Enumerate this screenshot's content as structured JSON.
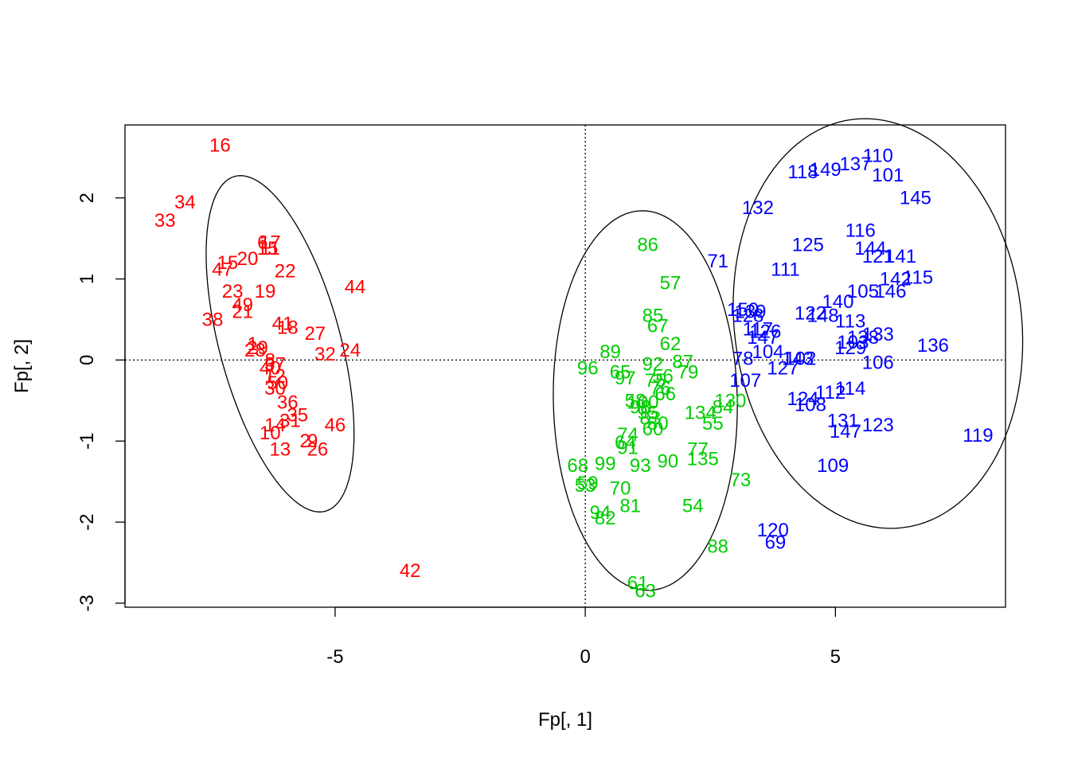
{
  "chart_data": {
    "type": "scatter",
    "title": "",
    "xlabel": "Fp[, 1]",
    "ylabel": "Fp[, 2]",
    "xlim": [
      -9.2,
      8.4
    ],
    "ylim": [
      -3.05,
      2.9
    ],
    "x_ticks": [
      -5,
      0,
      5
    ],
    "y_ticks": [
      -3,
      -2,
      -1,
      0,
      1,
      2
    ],
    "grid": false,
    "reference_lines": {
      "x": 0,
      "y": 0,
      "style": "dotted"
    },
    "colors": {
      "group1": "#ff0000",
      "group2": "#00cd00",
      "group3": "#0000ff",
      "ellipse": "#000000"
    },
    "ellipses": [
      {
        "group": "group1",
        "center": [
          -6.1,
          0.2
        ],
        "rx": 2.45,
        "ry": 1.12,
        "rotation_deg": 62
      },
      {
        "group": "group2",
        "center": [
          1.1,
          -0.6
        ],
        "rx": 3.1,
        "ry": 3.1,
        "rotation_deg": 0,
        "data_axes": [
          1.85,
          2.32
        ],
        "points": "computed"
      },
      {
        "group": "group3",
        "center": [
          5.9,
          0.6
        ],
        "data_axes": [
          3.0,
          2.8
        ],
        "rotation_deg": 0
      }
    ],
    "series": [
      {
        "name": "",
        "color_key": "group1",
        "points": [
          {
            "label": "16",
            "x": -7.3,
            "y": 2.65
          },
          {
            "label": "34",
            "x": -8.0,
            "y": 1.95
          },
          {
            "label": "33",
            "x": -8.4,
            "y": 1.72
          },
          {
            "label": "17",
            "x": -6.3,
            "y": 1.45
          },
          {
            "label": "6",
            "x": -6.45,
            "y": 1.45
          },
          {
            "label": "11",
            "x": -6.3,
            "y": 1.38
          },
          {
            "label": "15",
            "x": -6.35,
            "y": 1.38
          },
          {
            "label": "20",
            "x": -6.75,
            "y": 1.25
          },
          {
            "label": "15",
            "x": -7.15,
            "y": 1.2
          },
          {
            "label": "47",
            "x": -7.25,
            "y": 1.12
          },
          {
            "label": "22",
            "x": -6.0,
            "y": 1.1
          },
          {
            "label": "23",
            "x": -7.05,
            "y": 0.85
          },
          {
            "label": "19",
            "x": -6.4,
            "y": 0.85
          },
          {
            "label": "49",
            "x": -6.85,
            "y": 0.68
          },
          {
            "label": "21",
            "x": -6.85,
            "y": 0.6
          },
          {
            "label": "38",
            "x": -7.45,
            "y": 0.5
          },
          {
            "label": "44",
            "x": -4.6,
            "y": 0.9
          },
          {
            "label": "41",
            "x": -6.05,
            "y": 0.45
          },
          {
            "label": "18",
            "x": -5.95,
            "y": 0.4
          },
          {
            "label": "27",
            "x": -5.4,
            "y": 0.33
          },
          {
            "label": "1",
            "x": -6.65,
            "y": 0.2
          },
          {
            "label": "29",
            "x": -6.55,
            "y": 0.15
          },
          {
            "label": "28",
            "x": -6.6,
            "y": 0.12
          },
          {
            "label": "32",
            "x": -5.2,
            "y": 0.07
          },
          {
            "label": "24",
            "x": -4.7,
            "y": 0.12
          },
          {
            "label": "8",
            "x": -6.3,
            "y": 0.0
          },
          {
            "label": "37",
            "x": -6.2,
            "y": -0.05
          },
          {
            "label": "40",
            "x": -6.3,
            "y": -0.1
          },
          {
            "label": "12",
            "x": -6.2,
            "y": -0.2
          },
          {
            "label": "50",
            "x": -6.15,
            "y": -0.28
          },
          {
            "label": "30",
            "x": -6.2,
            "y": -0.35
          },
          {
            "label": "36",
            "x": -5.95,
            "y": -0.52
          },
          {
            "label": "35",
            "x": -5.75,
            "y": -0.68
          },
          {
            "label": "31",
            "x": -5.9,
            "y": -0.75
          },
          {
            "label": "14",
            "x": -6.2,
            "y": -0.8
          },
          {
            "label": "10",
            "x": -6.3,
            "y": -0.9
          },
          {
            "label": "46",
            "x": -5.0,
            "y": -0.8
          },
          {
            "label": "2",
            "x": -5.6,
            "y": -1.0
          },
          {
            "label": "9",
            "x": -5.45,
            "y": -1.0
          },
          {
            "label": "13",
            "x": -6.1,
            "y": -1.1
          },
          {
            "label": "26",
            "x": -5.35,
            "y": -1.1
          },
          {
            "label": "42",
            "x": -3.5,
            "y": -2.6
          }
        ]
      },
      {
        "name": "",
        "color_key": "group2",
        "points": [
          {
            "label": "86",
            "x": 1.25,
            "y": 1.42
          },
          {
            "label": "57",
            "x": 1.7,
            "y": 0.95
          },
          {
            "label": "85",
            "x": 1.35,
            "y": 0.55
          },
          {
            "label": "67",
            "x": 1.45,
            "y": 0.42
          },
          {
            "label": "62",
            "x": 1.7,
            "y": 0.2
          },
          {
            "label": "89",
            "x": 0.5,
            "y": 0.1
          },
          {
            "label": "96",
            "x": 0.05,
            "y": -0.1
          },
          {
            "label": "65",
            "x": 0.7,
            "y": -0.15
          },
          {
            "label": "97",
            "x": 0.8,
            "y": -0.22
          },
          {
            "label": "92",
            "x": 1.35,
            "y": -0.05
          },
          {
            "label": "79",
            "x": 2.05,
            "y": -0.15
          },
          {
            "label": "87",
            "x": 1.95,
            "y": -0.02
          },
          {
            "label": "56",
            "x": 1.55,
            "y": -0.2
          },
          {
            "label": "75",
            "x": 1.4,
            "y": -0.25
          },
          {
            "label": "76",
            "x": 1.5,
            "y": -0.35
          },
          {
            "label": "66",
            "x": 1.6,
            "y": -0.42
          },
          {
            "label": "58",
            "x": 1.0,
            "y": -0.5
          },
          {
            "label": "100",
            "x": 1.15,
            "y": -0.52
          },
          {
            "label": "98",
            "x": 1.1,
            "y": -0.58
          },
          {
            "label": "95",
            "x": 1.25,
            "y": -0.65
          },
          {
            "label": "83",
            "x": 1.3,
            "y": -0.72
          },
          {
            "label": "80",
            "x": 1.45,
            "y": -0.78
          },
          {
            "label": "60",
            "x": 1.35,
            "y": -0.85
          },
          {
            "label": "134",
            "x": 2.3,
            "y": -0.65
          },
          {
            "label": "130",
            "x": 2.9,
            "y": -0.5
          },
          {
            "label": "84",
            "x": 2.75,
            "y": -0.58
          },
          {
            "label": "55",
            "x": 2.55,
            "y": -0.78
          },
          {
            "label": "74",
            "x": 0.85,
            "y": -0.92
          },
          {
            "label": "64",
            "x": 0.8,
            "y": -1.02
          },
          {
            "label": "91",
            "x": 0.85,
            "y": -1.08
          },
          {
            "label": "77",
            "x": 2.25,
            "y": -1.1
          },
          {
            "label": "135",
            "x": 2.35,
            "y": -1.22
          },
          {
            "label": "90",
            "x": 1.65,
            "y": -1.25
          },
          {
            "label": "68",
            "x": -0.15,
            "y": -1.3
          },
          {
            "label": "99",
            "x": 0.4,
            "y": -1.28
          },
          {
            "label": "93",
            "x": 1.1,
            "y": -1.3
          },
          {
            "label": "59",
            "x": 0.05,
            "y": -1.52
          },
          {
            "label": "53",
            "x": 0.0,
            "y": -1.55
          },
          {
            "label": "70",
            "x": 0.7,
            "y": -1.58
          },
          {
            "label": "73",
            "x": 3.1,
            "y": -1.48
          },
          {
            "label": "54",
            "x": 2.15,
            "y": -1.8
          },
          {
            "label": "81",
            "x": 0.9,
            "y": -1.8
          },
          {
            "label": "94",
            "x": 0.3,
            "y": -1.88
          },
          {
            "label": "82",
            "x": 0.4,
            "y": -1.95
          },
          {
            "label": "88",
            "x": 2.65,
            "y": -2.3
          },
          {
            "label": "61",
            "x": 1.05,
            "y": -2.75
          },
          {
            "label": "63",
            "x": 1.2,
            "y": -2.85
          }
        ]
      },
      {
        "name": "",
        "color_key": "group3",
        "points": [
          {
            "label": "110",
            "x": 5.85,
            "y": 2.52
          },
          {
            "label": "137",
            "x": 5.4,
            "y": 2.42
          },
          {
            "label": "149",
            "x": 4.8,
            "y": 2.35
          },
          {
            "label": "118",
            "x": 4.35,
            "y": 2.32
          },
          {
            "label": "101",
            "x": 6.05,
            "y": 2.28
          },
          {
            "label": "145",
            "x": 6.6,
            "y": 2.0
          },
          {
            "label": "132",
            "x": 3.45,
            "y": 1.88
          },
          {
            "label": "116",
            "x": 5.5,
            "y": 1.6
          },
          {
            "label": "125",
            "x": 4.45,
            "y": 1.42
          },
          {
            "label": "144",
            "x": 5.7,
            "y": 1.38
          },
          {
            "label": "121",
            "x": 5.85,
            "y": 1.28
          },
          {
            "label": "141",
            "x": 6.3,
            "y": 1.28
          },
          {
            "label": "71",
            "x": 2.65,
            "y": 1.22
          },
          {
            "label": "111",
            "x": 4.0,
            "y": 1.12
          },
          {
            "label": "142",
            "x": 6.2,
            "y": 1.0
          },
          {
            "label": "115",
            "x": 6.65,
            "y": 1.02
          },
          {
            "label": "105",
            "x": 5.55,
            "y": 0.85
          },
          {
            "label": "146",
            "x": 6.1,
            "y": 0.85
          },
          {
            "label": "140",
            "x": 5.05,
            "y": 0.72
          },
          {
            "label": "150",
            "x": 3.15,
            "y": 0.62
          },
          {
            "label": "139",
            "x": 3.3,
            "y": 0.6
          },
          {
            "label": "128",
            "x": 3.25,
            "y": 0.55
          },
          {
            "label": "122",
            "x": 4.5,
            "y": 0.58
          },
          {
            "label": "148",
            "x": 4.75,
            "y": 0.55
          },
          {
            "label": "113",
            "x": 5.3,
            "y": 0.48
          },
          {
            "label": "117",
            "x": 3.45,
            "y": 0.38
          },
          {
            "label": "126",
            "x": 3.6,
            "y": 0.35
          },
          {
            "label": "147",
            "x": 3.55,
            "y": 0.28
          },
          {
            "label": "133",
            "x": 5.85,
            "y": 0.32
          },
          {
            "label": "138",
            "x": 5.55,
            "y": 0.28
          },
          {
            "label": "103",
            "x": 5.35,
            "y": 0.22
          },
          {
            "label": "129",
            "x": 5.3,
            "y": 0.15
          },
          {
            "label": "136",
            "x": 6.95,
            "y": 0.18
          },
          {
            "label": "104",
            "x": 3.65,
            "y": 0.1
          },
          {
            "label": "143",
            "x": 4.25,
            "y": 0.02
          },
          {
            "label": "102",
            "x": 4.3,
            "y": 0.02
          },
          {
            "label": "78",
            "x": 3.15,
            "y": 0.02
          },
          {
            "label": "106",
            "x": 5.85,
            "y": -0.03
          },
          {
            "label": "127",
            "x": 3.95,
            "y": -0.1
          },
          {
            "label": "107",
            "x": 3.2,
            "y": -0.25
          },
          {
            "label": "114",
            "x": 5.3,
            "y": -0.35
          },
          {
            "label": "112",
            "x": 4.9,
            "y": -0.4
          },
          {
            "label": "124",
            "x": 4.35,
            "y": -0.48
          },
          {
            "label": "108",
            "x": 4.5,
            "y": -0.55
          },
          {
            "label": "131",
            "x": 5.15,
            "y": -0.75
          },
          {
            "label": "147",
            "x": 5.2,
            "y": -0.88
          },
          {
            "label": "123",
            "x": 5.85,
            "y": -0.8
          },
          {
            "label": "119",
            "x": 7.85,
            "y": -0.93
          },
          {
            "label": "109",
            "x": 4.95,
            "y": -1.3
          },
          {
            "label": "120",
            "x": 3.75,
            "y": -2.1
          },
          {
            "label": "69",
            "x": 3.8,
            "y": -2.25
          }
        ]
      }
    ]
  }
}
